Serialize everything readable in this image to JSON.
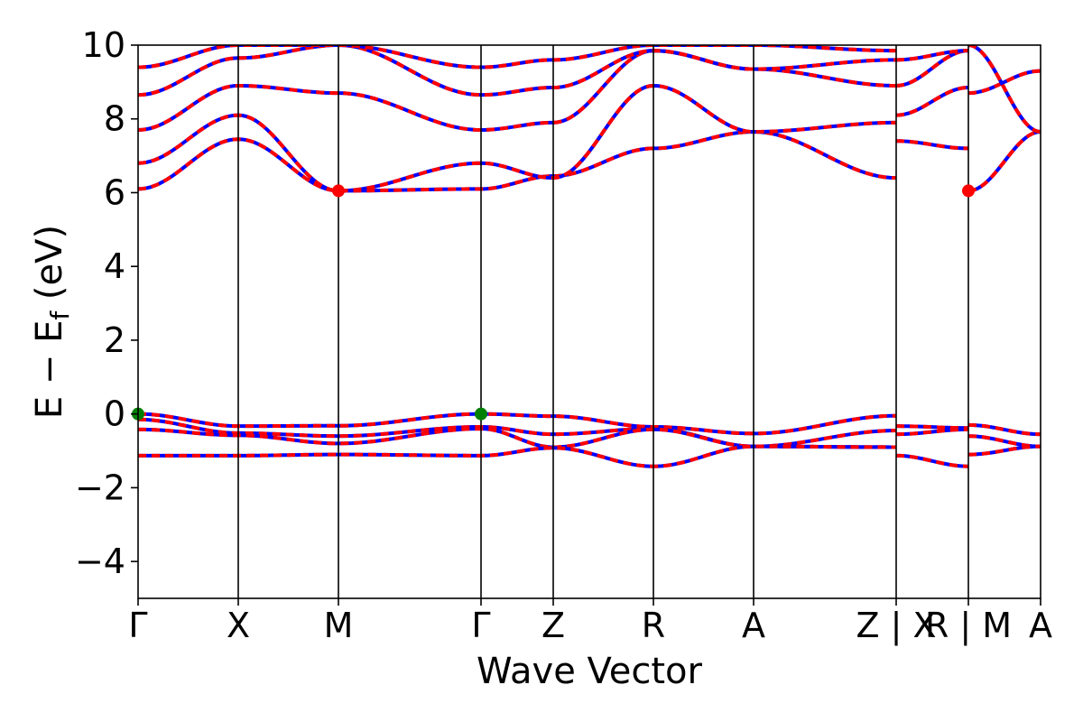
{
  "chart_data": {
    "type": "line",
    "xlabel": "Wave Vector",
    "ylabel_main": "E − E",
    "ylabel_sub": "f",
    "ylabel_unit": " (eV)",
    "ylim": [
      -5,
      10
    ],
    "yticks": [
      {
        "value": -4,
        "label": "−4"
      },
      {
        "value": -2,
        "label": "−2"
      },
      {
        "value": 0,
        "label": "0"
      },
      {
        "value": 2,
        "label": "2"
      },
      {
        "value": 4,
        "label": "4"
      },
      {
        "value": 6,
        "label": "6"
      },
      {
        "value": 8,
        "label": "8"
      },
      {
        "value": 10,
        "label": "10"
      }
    ],
    "xlim": [
      0,
      1
    ],
    "high_symmetry_points": [
      {
        "label": "Γ",
        "x": 0.0
      },
      {
        "label": "X",
        "x": 0.111
      },
      {
        "label": "M",
        "x": 0.222
      },
      {
        "label": "Γ",
        "x": 0.38
      },
      {
        "label": "Z",
        "x": 0.46
      },
      {
        "label": "R",
        "x": 0.571
      },
      {
        "label": "A",
        "x": 0.682
      },
      {
        "label": "Z | X",
        "x": 0.84
      },
      {
        "label": "R | M",
        "x": 0.92
      },
      {
        "label": "A",
        "x": 1.0
      }
    ],
    "vertical_lines": [
      0.111,
      0.222,
      0.38,
      0.46,
      0.571,
      0.682,
      0.84,
      0.92
    ],
    "grid": false,
    "legend": "none",
    "colors": {
      "line_a": "#ff0000",
      "line_b": "#0000ff",
      "cbm": "#ff0000",
      "vbm": "#008000"
    },
    "markers": [
      {
        "kind": "cbm",
        "x": 0.222,
        "y": 6.05
      },
      {
        "kind": "cbm",
        "x": 0.92,
        "y": 6.05
      },
      {
        "kind": "vbm",
        "x": 0.0,
        "y": 0.0
      },
      {
        "kind": "vbm",
        "x": 0.38,
        "y": 0.0
      }
    ],
    "bands": [
      {
        "segment": [
          0.0,
          0.84
        ],
        "x": [
          0.0,
          0.111,
          0.222,
          0.38,
          0.46,
          0.571,
          0.682,
          0.84
        ],
        "y": [
          0.0,
          -0.33,
          -0.32,
          0.0,
          -0.06,
          -0.35,
          -0.53,
          -0.05
        ]
      },
      {
        "segment": [
          0.0,
          0.84
        ],
        "x": [
          0.0,
          0.111,
          0.222,
          0.38,
          0.46,
          0.571,
          0.682,
          0.84
        ],
        "y": [
          -0.15,
          -0.52,
          -0.6,
          -0.35,
          -0.55,
          -0.4,
          -0.88,
          -0.45
        ]
      },
      {
        "segment": [
          0.0,
          0.84
        ],
        "x": [
          0.0,
          0.111,
          0.222,
          0.38,
          0.46,
          0.571,
          0.682,
          0.84
        ],
        "y": [
          -0.42,
          -0.58,
          -0.8,
          -0.4,
          -0.9,
          -0.42,
          -0.88,
          -0.9
        ]
      },
      {
        "segment": [
          0.0,
          0.84
        ],
        "x": [
          0.0,
          0.111,
          0.222,
          0.38,
          0.46,
          0.571,
          0.682,
          0.84
        ],
        "y": [
          -1.13,
          -1.13,
          -1.1,
          -1.13,
          -0.92,
          -1.42,
          -0.88,
          -0.9
        ]
      },
      {
        "segment": [
          0.84,
          0.92
        ],
        "x": [
          0.84,
          0.92
        ],
        "y": [
          -0.33,
          -0.38
        ]
      },
      {
        "segment": [
          0.84,
          0.92
        ],
        "x": [
          0.84,
          0.92
        ],
        "y": [
          -0.55,
          -0.42
        ]
      },
      {
        "segment": [
          0.84,
          0.92
        ],
        "x": [
          0.84,
          0.92
        ],
        "y": [
          -1.13,
          -1.42
        ]
      },
      {
        "segment": [
          0.92,
          1.0
        ],
        "x": [
          0.92,
          1.0
        ],
        "y": [
          -0.3,
          -0.55
        ]
      },
      {
        "segment": [
          0.92,
          1.0
        ],
        "x": [
          0.92,
          1.0
        ],
        "y": [
          -0.6,
          -0.88
        ]
      },
      {
        "segment": [
          0.92,
          1.0
        ],
        "x": [
          0.92,
          1.0
        ],
        "y": [
          -1.1,
          -0.88
        ]
      },
      {
        "segment": [
          0.0,
          0.84
        ],
        "x": [
          0.0,
          0.111,
          0.222,
          0.38,
          0.46,
          0.571,
          0.682,
          0.84
        ],
        "y": [
          6.1,
          7.45,
          6.05,
          6.1,
          6.45,
          7.2,
          7.65,
          6.4
        ]
      },
      {
        "segment": [
          0.0,
          0.84
        ],
        "x": [
          0.0,
          0.111,
          0.222,
          0.38,
          0.46,
          0.571,
          0.682,
          0.84
        ],
        "y": [
          6.8,
          8.1,
          6.05,
          6.8,
          6.4,
          8.9,
          7.65,
          7.9
        ]
      },
      {
        "segment": [
          0.0,
          0.84
        ],
        "x": [
          0.0,
          0.111,
          0.222,
          0.38,
          0.46,
          0.571,
          0.682,
          0.84
        ],
        "y": [
          7.7,
          8.9,
          8.7,
          7.7,
          7.9,
          9.85,
          9.35,
          8.9
        ]
      },
      {
        "segment": [
          0.0,
          0.84
        ],
        "x": [
          0.0,
          0.111,
          0.222,
          0.38,
          0.46,
          0.571,
          0.682,
          0.84
        ],
        "y": [
          8.65,
          9.65,
          10.0,
          8.65,
          8.85,
          9.85,
          9.35,
          9.6
        ]
      },
      {
        "segment": [
          0.0,
          0.84
        ],
        "x": [
          0.0,
          0.111,
          0.222,
          0.38,
          0.46,
          0.571,
          0.682,
          0.84
        ],
        "y": [
          9.4,
          10.0,
          10.0,
          9.4,
          9.6,
          10.0,
          10.0,
          9.85
        ]
      },
      {
        "segment": [
          0.84,
          0.92
        ],
        "x": [
          0.84,
          0.92
        ],
        "y": [
          7.4,
          7.2
        ]
      },
      {
        "segment": [
          0.84,
          0.92
        ],
        "x": [
          0.84,
          0.92
        ],
        "y": [
          8.1,
          8.85
        ]
      },
      {
        "segment": [
          0.84,
          0.92
        ],
        "x": [
          0.84,
          0.92
        ],
        "y": [
          8.9,
          9.85
        ]
      },
      {
        "segment": [
          0.84,
          0.92
        ],
        "x": [
          0.84,
          0.92
        ],
        "y": [
          9.6,
          9.85
        ]
      },
      {
        "segment": [
          0.92,
          1.0
        ],
        "x": [
          0.92,
          1.0
        ],
        "y": [
          6.05,
          7.65
        ]
      },
      {
        "segment": [
          0.92,
          1.0
        ],
        "x": [
          0.92,
          1.0
        ],
        "y": [
          8.7,
          9.3
        ]
      },
      {
        "segment": [
          0.92,
          1.0
        ],
        "x": [
          0.92,
          1.0
        ],
        "y": [
          10.0,
          7.65
        ]
      }
    ]
  }
}
